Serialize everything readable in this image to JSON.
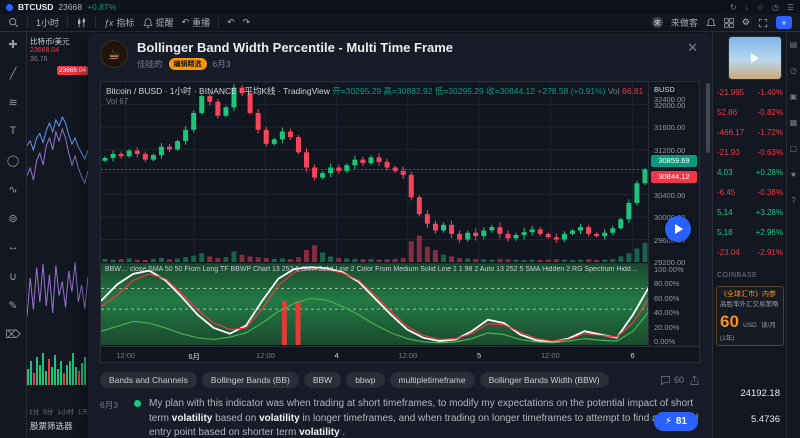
{
  "icons": {
    "close": "✕",
    "caret": "▾",
    "gear": "⚙",
    "undo": "↶",
    "redo": "↷",
    "plus": "+",
    "bolt": "⚡",
    "user_initial": "来"
  },
  "topbar": {
    "symbol": "BTCUSD",
    "price": "23668",
    "change": "+0.87%",
    "window_icons": [
      "↻",
      "↓",
      "☆",
      "◷",
      "☰"
    ],
    "interval": "1小时",
    "indicators_label": "指标",
    "alert_label": "提醒",
    "replay_label": "重播",
    "user": "来做客"
  },
  "left_toolbar": {
    "tools": [
      {
        "name": "crosshair",
        "glyph": "✚"
      },
      {
        "name": "trendline",
        "glyph": "╱"
      },
      {
        "name": "fib",
        "glyph": "≋"
      },
      {
        "name": "text",
        "glyph": "T"
      },
      {
        "name": "shapes",
        "glyph": "◯"
      },
      {
        "name": "brush",
        "glyph": "∿"
      },
      {
        "name": "forecast",
        "glyph": "⊚"
      },
      {
        "name": "measure",
        "glyph": "↔"
      },
      {
        "name": "magnet",
        "glyph": "∪"
      },
      {
        "name": "draw",
        "glyph": "✎"
      },
      {
        "name": "remove",
        "glyph": "⌦"
      }
    ]
  },
  "watchlist": {
    "symbol": "比特币/美元",
    "price": "23668.04",
    "change": "36.76",
    "badge": "23668.04",
    "timeframes": [
      "1分",
      "5分",
      "1小时",
      "1天"
    ],
    "screener": "股票筛选器",
    "spark_purple": [
      35,
      40,
      32,
      45,
      50,
      42,
      55,
      60,
      52,
      64,
      58,
      66,
      60,
      50,
      42,
      48,
      40,
      34,
      30,
      38
    ],
    "spark_blue": [
      55,
      58,
      52,
      60,
      63,
      57,
      65,
      70,
      64,
      72,
      68,
      74,
      70,
      62,
      56,
      60,
      54,
      50,
      46,
      52
    ],
    "osc": [
      15,
      70,
      25,
      85,
      35,
      90,
      30,
      75,
      20,
      88,
      45,
      65,
      28,
      80,
      50,
      92,
      36,
      60,
      26,
      72
    ],
    "osc_bars": [
      8,
      12,
      6,
      14,
      10,
      16,
      7,
      13,
      9,
      15,
      8,
      12,
      6,
      10,
      12,
      16,
      9,
      7,
      11,
      14
    ]
  },
  "modal": {
    "title": "Bollinger Band Width Percentile - Multi Time Frame",
    "author": "佳娃的",
    "badge": "编辑精选",
    "date": "6月3",
    "legend": {
      "symbol": "Bitcoin / BUSD · 1小时 · BINANCE · 平均K线 · TradingView",
      "ohlc": "开=30295.29 高=30882.92 低=30295.29 收=30844.12 +278.58 (+0.91%)",
      "vol_label": "Vol",
      "vol_value": "66.81",
      "sub": "Vol 67"
    },
    "bbwp_legend": "BBW…  close SMA 50 50 From Long TF BBWP Chart 13 252 5 SMA Solid Line 2 Color From Medium Solid Line 1 1 98 2 Auto 13 252 5 SMA Hidden 2 RG Spectrum Hidden 1 1 98 2 Auto 13 252 5 SMA Background 2 RG Spectrum Hidden 1 5 75 90",
    "price_axis": {
      "currency": "BUSD",
      "values": [
        32400,
        32000,
        31600,
        31200,
        30400,
        30000,
        29600,
        29200
      ]
    },
    "badges": [
      {
        "text": "30859.69",
        "value": 30859.69,
        "color": "#089981"
      },
      {
        "text": "30844.12",
        "value": 30844.12,
        "color": "#f23645"
      }
    ],
    "pct_labels": [
      100,
      80,
      60,
      40,
      20,
      0
    ],
    "tags": [
      "Bands and Channels",
      "Bollinger Bands (BB)",
      "BBW",
      "bbwp",
      "multipletimeframe",
      "Bollinger Bands Width (BBW)"
    ],
    "comments": "60",
    "boost": "81",
    "desc_date": "6月3",
    "description": [
      {
        "t": "My plan with this indicator was when trading at short timeframes, to modify my expectations on the potential impact of short term "
      },
      {
        "t": "volatility",
        "b": true
      },
      {
        "t": " based on "
      },
      {
        "t": "volatility",
        "b": true
      },
      {
        "t": " in longer timeframes, and when trading on longer timeframes to attempt to find an optimal entry point based on shorter term "
      },
      {
        "t": "volatility",
        "b": true
      },
      {
        "t": " ."
      }
    ]
  },
  "right_panel": {
    "rows": [
      {
        "a": "-21.995",
        "b": "-1.40%",
        "up": false
      },
      {
        "a": "52.86",
        "b": "-0.82%",
        "up": false
      },
      {
        "a": "-466.17",
        "b": "-1.72%",
        "up": false
      },
      {
        "a": "-21.93",
        "b": "-0.63%",
        "up": false
      },
      {
        "a": "4.03",
        "b": "+0.28%",
        "up": true
      },
      {
        "a": "-6.45",
        "b": "-0.38%",
        "up": false
      },
      {
        "a": "5.14",
        "b": "+3.28%",
        "up": true
      },
      {
        "a": "5.18",
        "b": "+2.96%",
        "up": true
      },
      {
        "a": "-23.04",
        "b": "-2.91%",
        "up": false
      }
    ],
    "exchange": "COINBASE",
    "ad": {
      "line1": "《全球汇市》内参",
      "line2": "高胜率外汇交易策略",
      "price": "60",
      "currency": "USD",
      "period": "读/月(1年)"
    },
    "quotes": [
      "24192.18",
      "5.4736"
    ]
  },
  "right_edge": {
    "icons": [
      {
        "name": "watchlist",
        "glyph": "▤"
      },
      {
        "name": "alerts",
        "glyph": "◷"
      },
      {
        "name": "news",
        "glyph": "▣"
      },
      {
        "name": "calendar",
        "glyph": "▦"
      },
      {
        "name": "chat",
        "glyph": "▢"
      },
      {
        "name": "ideas",
        "glyph": "★"
      },
      {
        "name": "help",
        "glyph": "?"
      }
    ]
  },
  "chart_data": [
    {
      "type": "candlestick",
      "symbol": "Bitcoin / BUSD",
      "interval": "1小时",
      "exchange": "BINANCE",
      "style": "平均K线",
      "ohlc_last": {
        "open": 30295.29,
        "high": 30882.92,
        "low": 30295.29,
        "close": 30844.12,
        "change": "+278.58 (+0.91%)"
      },
      "volume_last": 66.81,
      "ylim": [
        29200,
        32400
      ],
      "y_step": 400,
      "open0": 31000,
      "closes": [
        31050,
        31120,
        31080,
        31180,
        31120,
        31020,
        31100,
        31250,
        31200,
        31350,
        31550,
        31850,
        32150,
        32050,
        31800,
        31950,
        32300,
        32200,
        31850,
        31550,
        31300,
        31380,
        31520,
        31420,
        31150,
        30880,
        30700,
        30780,
        30880,
        30820,
        30920,
        31020,
        30960,
        31060,
        30980,
        30880,
        30820,
        30750,
        30350,
        30050,
        29880,
        29760,
        29860,
        29700,
        29600,
        29720,
        29660,
        29760,
        29820,
        29700,
        29620,
        29680,
        29730,
        29780,
        29700,
        29640,
        29600,
        29700,
        29760,
        29820,
        29700,
        29660,
        29720,
        29800,
        29960,
        30250,
        30600,
        30844
      ],
      "volumes": [
        8,
        6,
        7,
        9,
        6,
        5,
        8,
        10,
        7,
        9,
        12,
        16,
        22,
        14,
        10,
        12,
        26,
        18,
        14,
        12,
        10,
        8,
        9,
        7,
        12,
        30,
        42,
        24,
        14,
        10,
        9,
        8,
        7,
        8,
        6,
        7,
        8,
        10,
        52,
        66,
        38,
        30,
        18,
        14,
        10,
        9,
        8,
        7,
        6,
        8,
        7,
        6,
        5,
        6,
        5,
        6,
        7,
        6,
        5,
        6,
        7,
        5,
        6,
        8,
        14,
        22,
        34,
        48
      ],
      "x_labels": [
        {
          "x": 0.045,
          "t": "12:00"
        },
        {
          "x": 0.17,
          "t": "6月",
          "d": true
        },
        {
          "x": 0.3,
          "t": "12:00"
        },
        {
          "x": 0.43,
          "t": "4",
          "d": true
        },
        {
          "x": 0.56,
          "t": "12:00"
        },
        {
          "x": 0.69,
          "t": "5",
          "d": true
        },
        {
          "x": 0.82,
          "t": "12:00"
        },
        {
          "x": 0.97,
          "t": "6",
          "d": true
        }
      ]
    },
    {
      "type": "line",
      "title": "Bollinger Band Width Percentile (BBWP)",
      "ylim": [
        0,
        100
      ],
      "legend_position": "top-left",
      "series": [
        {
          "name": "BBWP",
          "color": "#ffffff",
          "values": [
            55,
            75,
            88,
            92,
            80,
            60,
            38,
            22,
            15,
            25,
            55,
            82,
            94,
            96,
            95,
            90,
            78,
            58,
            38,
            20,
            10,
            6,
            8,
            18,
            32,
            28,
            14,
            7,
            5,
            9,
            18,
            14,
            10,
            38,
            72
          ]
        },
        {
          "name": "SMA red",
          "color": "#f23645",
          "values": [
            48,
            62,
            80,
            88,
            82,
            64,
            44,
            28,
            20,
            22,
            45,
            74,
            90,
            94,
            93,
            89,
            80,
            62,
            42,
            24,
            13,
            8,
            9,
            15,
            27,
            26,
            17,
            9,
            6,
            8,
            15,
            13,
            11,
            28,
            58
          ]
        },
        {
          "name": "SMA green",
          "color": "#4caf50",
          "values": [
            18,
            24,
            30,
            28,
            22,
            15,
            10,
            8,
            11,
            16,
            28,
            42,
            52,
            58,
            56,
            48,
            38,
            26,
            16,
            9,
            5,
            4,
            5,
            9,
            16,
            14,
            8,
            5,
            4,
            6,
            9,
            7,
            6,
            18,
            42
          ]
        }
      ],
      "dashed_levels": [
        70,
        45
      ],
      "alert_bars_x": [
        0.33,
        0.355
      ]
    }
  ]
}
